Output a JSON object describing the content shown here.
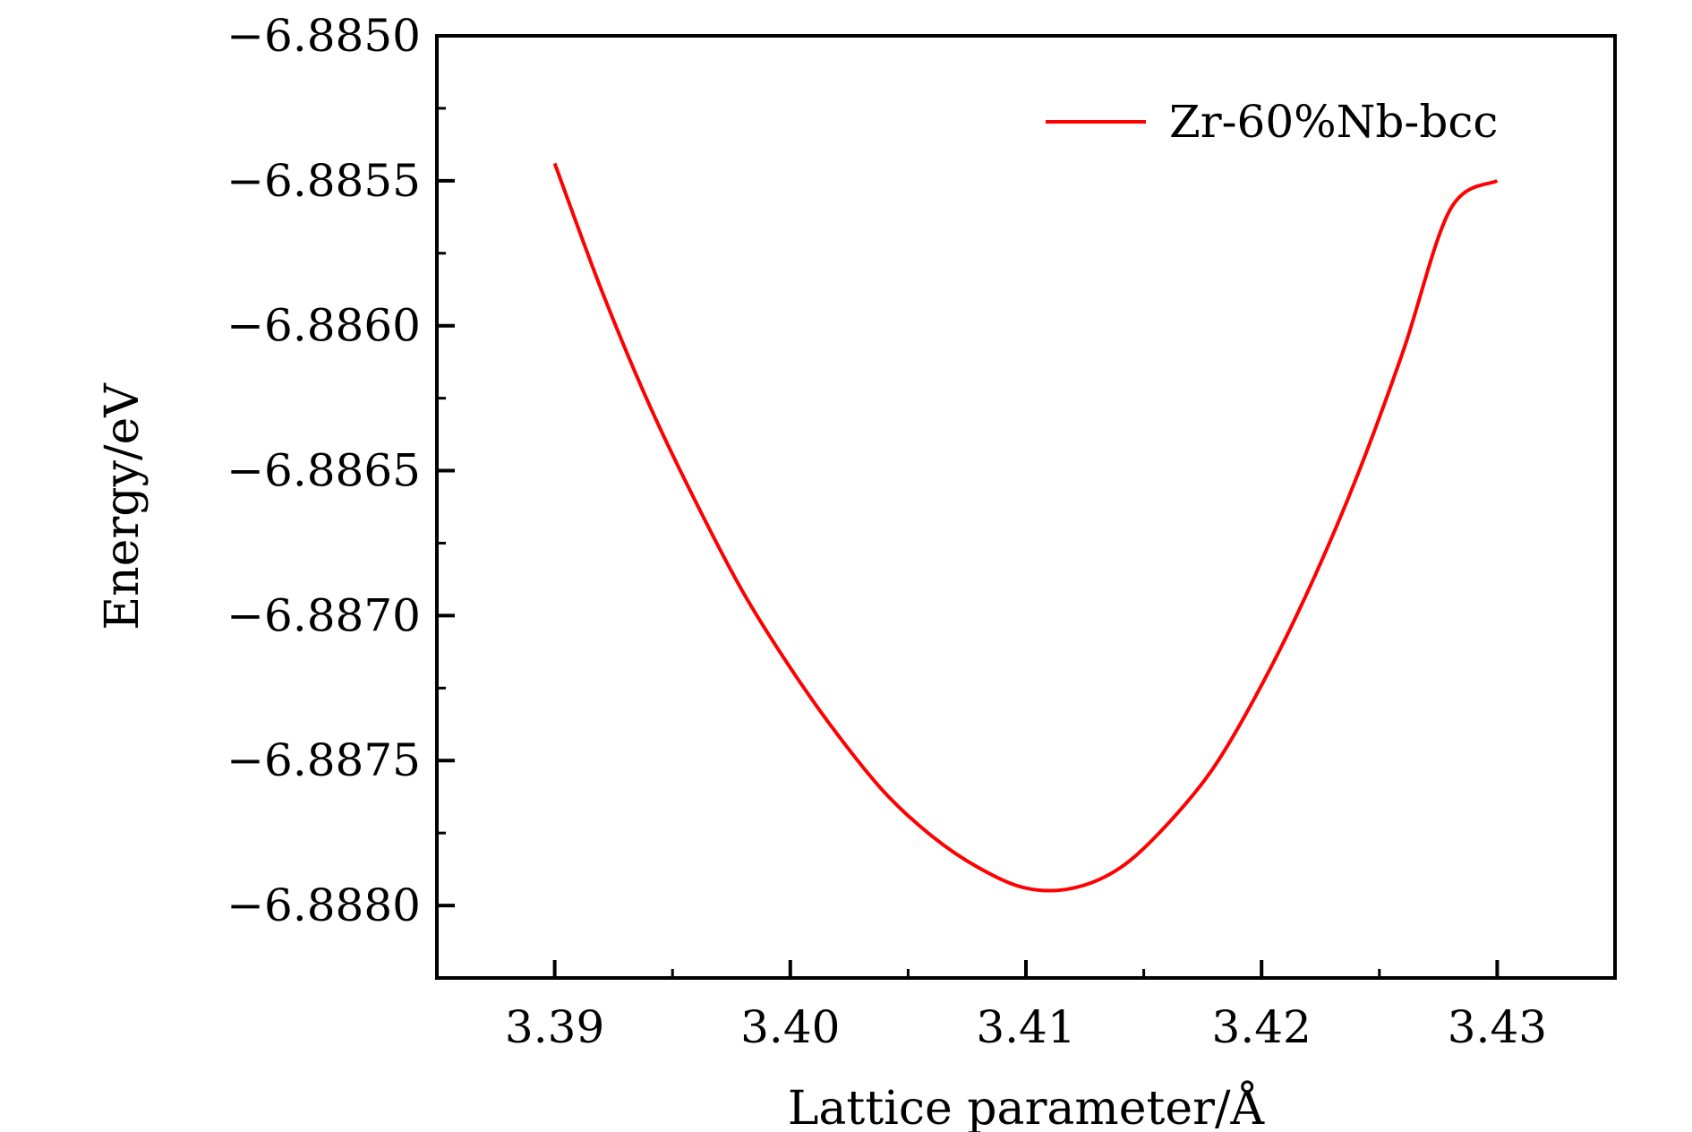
{
  "chart_data": {
    "type": "line",
    "xlabel": "Lattice parameter/Å",
    "ylabel": "Energy/eV",
    "xlim": [
      3.385,
      3.435
    ],
    "ylim": [
      -6.88825,
      -6.885
    ],
    "x_ticks": [
      3.39,
      3.4,
      3.41,
      3.42,
      3.43
    ],
    "x_tick_labels": [
      "3.39",
      "3.40",
      "3.41",
      "3.42",
      "3.43"
    ],
    "y_ticks": [
      -6.885,
      -6.8855,
      -6.886,
      -6.8865,
      -6.887,
      -6.8875,
      -6.888
    ],
    "y_tick_labels": [
      "−6.8850",
      "−6.8855",
      "−6.8860",
      "−6.8865",
      "−6.8870",
      "−6.8875",
      "−6.8880"
    ],
    "grid": false,
    "legend_position": "top-right",
    "series": [
      {
        "name": "Zr-60%Nb-bcc",
        "color": "#ff0000",
        "x": [
          3.39,
          3.392,
          3.394,
          3.396,
          3.398,
          3.4,
          3.402,
          3.404,
          3.406,
          3.408,
          3.41,
          3.412,
          3.414,
          3.416,
          3.418,
          3.42,
          3.422,
          3.424,
          3.426,
          3.428,
          3.43
        ],
        "y": [
          -6.88544,
          -6.88588,
          -6.88627,
          -6.88661,
          -6.88692,
          -6.88718,
          -6.88741,
          -6.88761,
          -6.88776,
          -6.88787,
          -6.88794,
          -6.88794,
          -6.88787,
          -6.88772,
          -6.88752,
          -6.88724,
          -6.88691,
          -6.88653,
          -6.88609,
          -6.8856,
          -6.8855
        ]
      }
    ]
  }
}
